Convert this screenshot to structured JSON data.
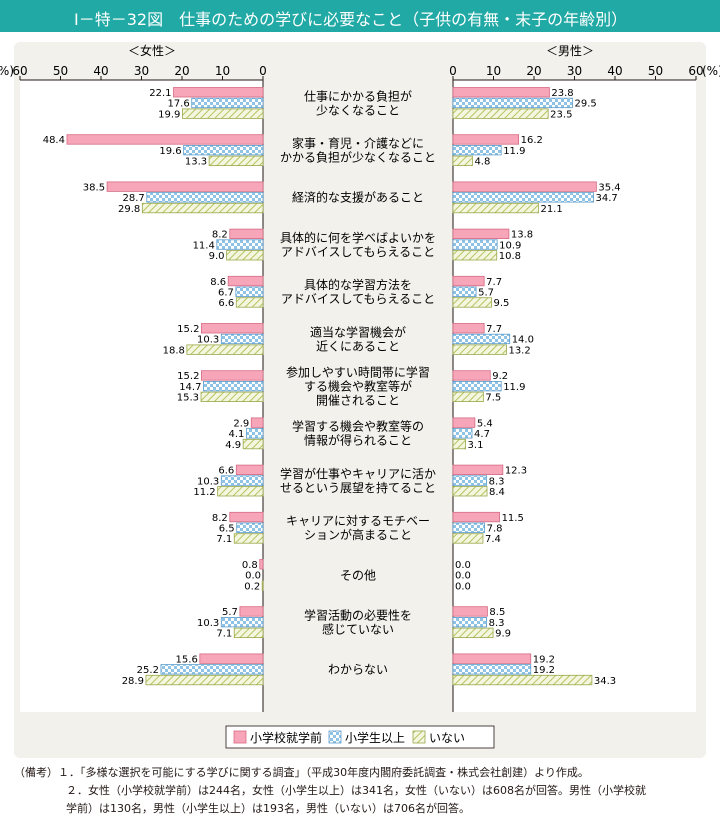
{
  "figure": {
    "title": "Ⅰ－特－32図　仕事のための学びに必要なこと（子供の有無・末子の年齢別）"
  },
  "colors": {
    "title_bg": "#20a9a5",
    "panel_bg": "#f2f1ec",
    "series": [
      "#f6a6b8",
      "#8fc3e6",
      "#cfd98a"
    ]
  },
  "chart_data": {
    "type": "bar",
    "orientation": "horizontal",
    "layout": "butterfly",
    "categories": [
      "仕事にかかる負担が\n少なくなること",
      "家事・育児・介護などに\nかかる負担が少なくなること",
      "経済的な支援があること",
      "具体的に何を学べばよいかを\nアドバイスしてもらえること",
      "具体的な学習方法を\nアドバイスしてもらえること",
      "適当な学習機会が\n近くにあること",
      "参加しやすい時間帯に学習\nする機会や教室等が\n開催されること",
      "学習する機会や教室等の\n情報が得られること",
      "学習が仕事やキャリアに活か\nせるという展望を持てること",
      "キャリアに対するモチベー\nションが高まること",
      "その他",
      "学習活動の必要性を\n感じていない",
      "わからない"
    ],
    "panels": [
      {
        "label": "＜女性＞",
        "side": "left",
        "unit": "(%)",
        "xlim": [
          0,
          60
        ],
        "ticks": [
          "0",
          "10",
          "20",
          "30",
          "40",
          "50",
          "60"
        ],
        "series": [
          {
            "name": "小学校就学前",
            "values": [
              22.1,
              48.4,
              38.5,
              8.2,
              8.6,
              15.2,
              15.2,
              2.9,
              6.6,
              8.2,
              0.8,
              5.7,
              15.6
            ]
          },
          {
            "name": "小学生以上",
            "values": [
              17.6,
              19.6,
              28.7,
              11.4,
              6.7,
              10.3,
              14.7,
              4.1,
              10.3,
              6.5,
              0.0,
              10.3,
              25.2
            ]
          },
          {
            "name": "いない",
            "values": [
              19.9,
              13.3,
              29.8,
              9.0,
              6.6,
              18.8,
              15.3,
              4.9,
              11.2,
              7.1,
              0.2,
              7.1,
              28.9
            ]
          }
        ]
      },
      {
        "label": "＜男性＞",
        "side": "right",
        "unit": "(%)",
        "xlim": [
          0,
          60
        ],
        "ticks": [
          "0",
          "10",
          "20",
          "30",
          "40",
          "50",
          "60"
        ],
        "series": [
          {
            "name": "小学校就学前",
            "values": [
              23.8,
              16.2,
              35.4,
              13.8,
              7.7,
              7.7,
              9.2,
              5.4,
              12.3,
              11.5,
              0.0,
              8.5,
              19.2
            ]
          },
          {
            "name": "小学生以上",
            "values": [
              29.5,
              11.9,
              34.7,
              10.9,
              5.7,
              14.0,
              11.9,
              4.7,
              8.3,
              7.8,
              0.0,
              8.3,
              19.2
            ]
          },
          {
            "name": "いない",
            "values": [
              23.5,
              4.8,
              21.1,
              10.8,
              9.5,
              13.2,
              7.5,
              3.1,
              8.4,
              7.4,
              0.0,
              9.9,
              34.3
            ]
          }
        ]
      }
    ],
    "legend": [
      "小学校就学前",
      "小学生以上",
      "いない"
    ],
    "legend_position": "bottom-center"
  },
  "notes": [
    "（備考）１．「多様な選択を可能にする学びに関する調査」（平成30年度内閣府委託調査・株式会社創建）より作成。",
    "２．女性（小学校就学前）は244名，女性（小学生以上）は341名，女性（いない）は608名が回答。男性（小学校就",
    "学前）は130名，男性（小学生以上）は193名，男性（いない）は706名が回答。"
  ]
}
